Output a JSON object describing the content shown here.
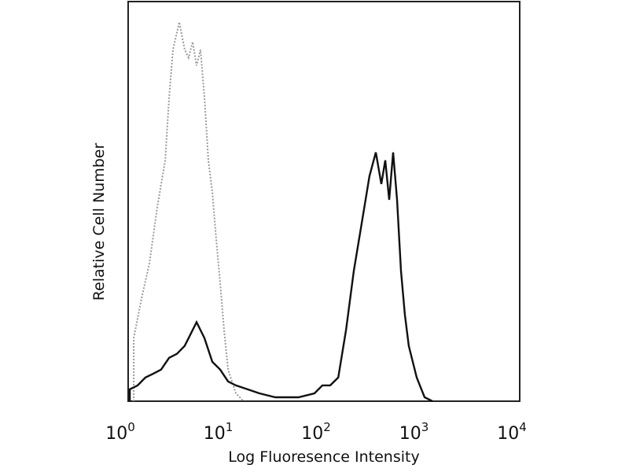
{
  "chart_data": {
    "type": "line",
    "title": "",
    "xlabel": "Log Fluoresence Intensity",
    "ylabel": "Relative Cell Number",
    "xscale": "log",
    "xlim": [
      1,
      10000
    ],
    "ylim": [
      0,
      100
    ],
    "grid": false,
    "x_ticks": [
      {
        "base": "10",
        "exp": "0",
        "value": 1
      },
      {
        "base": "10",
        "exp": "1",
        "value": 10
      },
      {
        "base": "10",
        "exp": "2",
        "value": 100
      },
      {
        "base": "10",
        "exp": "3",
        "value": 1000
      },
      {
        "base": "10",
        "exp": "4",
        "value": 10000
      }
    ],
    "series": [
      {
        "style": "dotted",
        "color": "#9a9a9a",
        "x": [
          1.14,
          1.37,
          1.65,
          1.98,
          2.39,
          2.62,
          2.87,
          3.33,
          3.78,
          4.15,
          4.56,
          5.0,
          5.48,
          6.01,
          6.6,
          7.23,
          7.94,
          8.71,
          9.55,
          10.5,
          12.6,
          15.1
        ],
        "y": [
          16,
          26,
          35,
          49,
          61,
          77,
          89,
          96,
          89,
          87,
          91,
          85,
          89,
          77,
          61,
          53,
          41,
          30,
          18,
          8,
          2,
          0
        ]
      },
      {
        "style": "solid",
        "color": "#111111",
        "x": [
          1.04,
          1.25,
          1.5,
          1.81,
          2.17,
          2.62,
          3.15,
          3.78,
          4.56,
          5.0,
          5.48,
          6.01,
          7.23,
          8.71,
          10.5,
          12.6,
          16.6,
          21.9,
          31.8,
          55.3,
          80.1,
          96.4,
          116,
          140,
          168,
          202,
          243,
          292,
          339,
          386,
          423,
          464,
          509,
          558,
          612,
          671,
          736,
          887,
          1067,
          1283
        ],
        "y": [
          3,
          4,
          6,
          7,
          8,
          11,
          12,
          14,
          18,
          20,
          18,
          16,
          10,
          8,
          5,
          4,
          3,
          2,
          1,
          1,
          2,
          4,
          4,
          6,
          18,
          33,
          45,
          57,
          63,
          55,
          61,
          51,
          63,
          51,
          33,
          22,
          14,
          6,
          1,
          0
        ]
      }
    ]
  }
}
